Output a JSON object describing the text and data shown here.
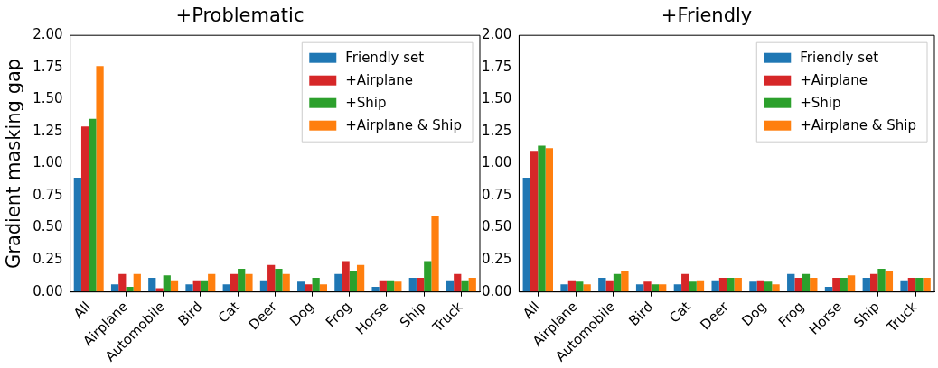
{
  "chart_data": [
    {
      "type": "bar",
      "title": "+Problematic",
      "ylabel": "Gradient masking gap",
      "categories": [
        "All",
        "Airplane",
        "Automobile",
        "Bird",
        "Cat",
        "Deer",
        "Dog",
        "Frog",
        "Horse",
        "Ship",
        "Truck"
      ],
      "series": [
        {
          "name": "Friendly set",
          "color": "#1f77b4",
          "values": [
            0.89,
            0.06,
            0.11,
            0.06,
            0.06,
            0.09,
            0.08,
            0.14,
            0.04,
            0.11,
            0.09
          ]
        },
        {
          "name": "+Airplane",
          "color": "#d62728",
          "values": [
            1.29,
            0.14,
            0.03,
            0.09,
            0.14,
            0.21,
            0.06,
            0.24,
            0.09,
            0.11,
            0.14
          ]
        },
        {
          "name": "+Ship",
          "color": "#2ca02c",
          "values": [
            1.35,
            0.04,
            0.13,
            0.09,
            0.18,
            0.18,
            0.11,
            0.16,
            0.09,
            0.24,
            0.09
          ]
        },
        {
          "name": "+Airplane & Ship",
          "color": "#ff7f0e",
          "values": [
            1.76,
            0.14,
            0.09,
            0.14,
            0.14,
            0.14,
            0.06,
            0.21,
            0.08,
            0.59,
            0.11
          ]
        }
      ],
      "ylim": [
        0,
        2
      ],
      "yticks": [
        {
          "value": 0,
          "label": "0.00"
        },
        {
          "value": 0.25,
          "label": "0.25"
        },
        {
          "value": 0.5,
          "label": "0.50"
        },
        {
          "value": 0.75,
          "label": "0.75"
        },
        {
          "value": 1,
          "label": "1.00"
        },
        {
          "value": 1.25,
          "label": "1.25"
        },
        {
          "value": 1.5,
          "label": "1.50"
        },
        {
          "value": 1.75,
          "label": "1.75"
        },
        {
          "value": 2,
          "label": "2.00"
        }
      ],
      "legend": "top right"
    },
    {
      "type": "bar",
      "title": "+Friendly",
      "categories": [
        "All",
        "Airplane",
        "Automobile",
        "Bird",
        "Cat",
        "Deer",
        "Dog",
        "Frog",
        "Horse",
        "Ship",
        "Truck"
      ],
      "series": [
        {
          "name": "Friendly set",
          "color": "#1f77b4",
          "values": [
            0.89,
            0.06,
            0.11,
            0.06,
            0.06,
            0.09,
            0.08,
            0.14,
            0.04,
            0.11,
            0.09
          ]
        },
        {
          "name": "+Airplane",
          "color": "#d62728",
          "values": [
            1.1,
            0.09,
            0.09,
            0.08,
            0.14,
            0.11,
            0.09,
            0.11,
            0.11,
            0.14,
            0.11
          ]
        },
        {
          "name": "+Ship",
          "color": "#2ca02c",
          "values": [
            1.14,
            0.08,
            0.14,
            0.06,
            0.08,
            0.11,
            0.08,
            0.14,
            0.11,
            0.18,
            0.11
          ]
        },
        {
          "name": "+Airplane & Ship",
          "color": "#ff7f0e",
          "values": [
            1.12,
            0.06,
            0.16,
            0.06,
            0.09,
            0.11,
            0.06,
            0.11,
            0.13,
            0.16,
            0.11
          ]
        }
      ],
      "ylim": [
        0,
        2
      ],
      "yticks": [
        {
          "value": 0,
          "label": "0.00"
        },
        {
          "value": 0.25,
          "label": "0.25"
        },
        {
          "value": 0.5,
          "label": "0.50"
        },
        {
          "value": 0.75,
          "label": "0.75"
        },
        {
          "value": 1,
          "label": "1.00"
        },
        {
          "value": 1.25,
          "label": "1.25"
        },
        {
          "value": 1.5,
          "label": "1.50"
        },
        {
          "value": 1.75,
          "label": "1.75"
        },
        {
          "value": 2,
          "label": "2.00"
        }
      ],
      "legend": "top right"
    }
  ]
}
